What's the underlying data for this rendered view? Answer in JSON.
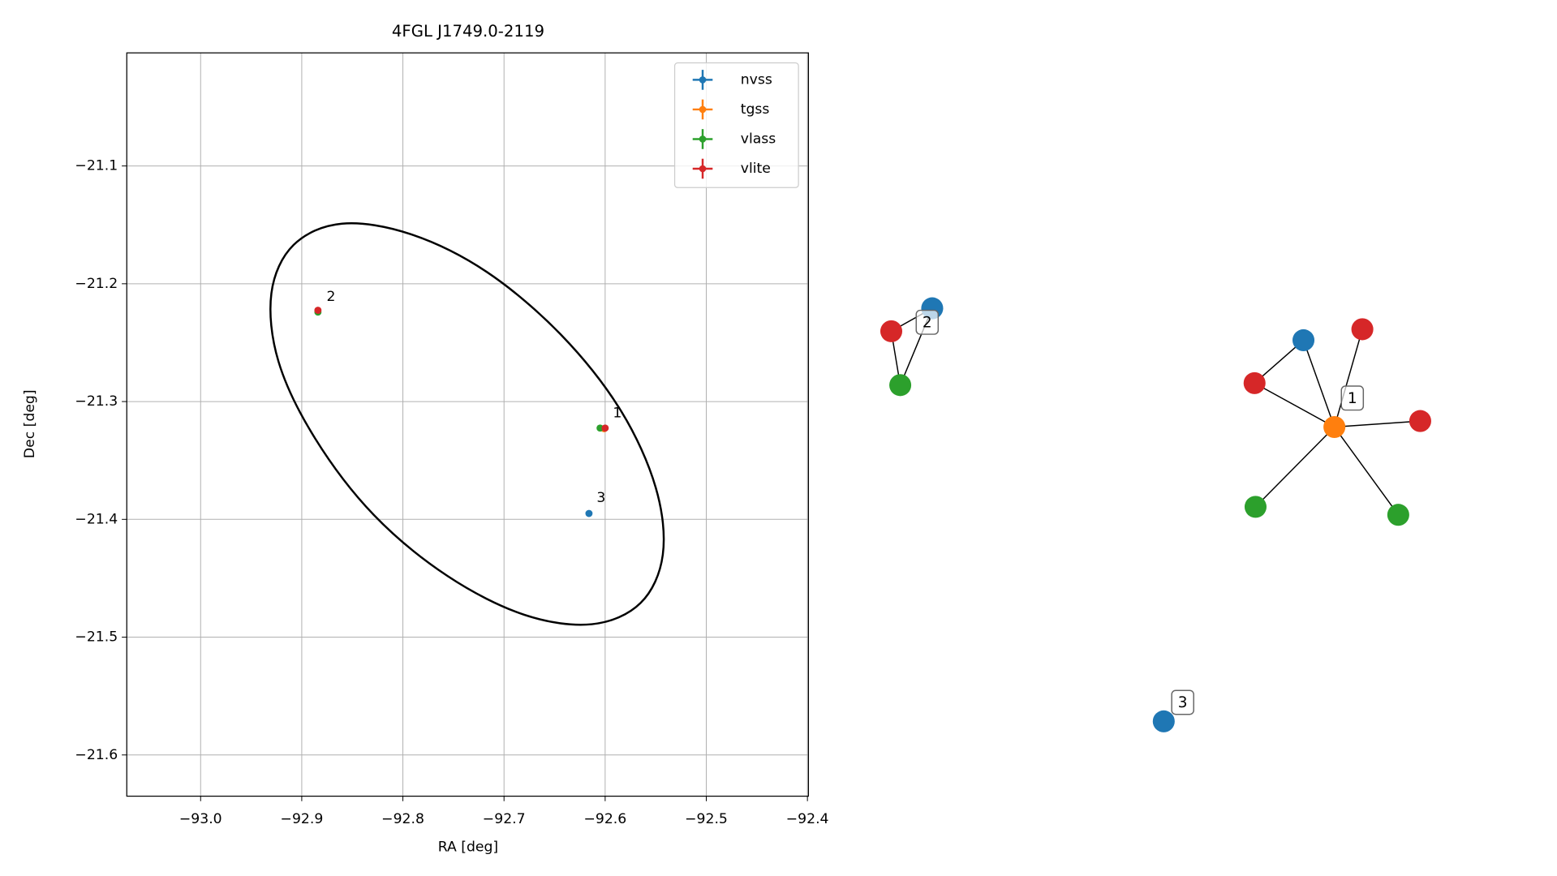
{
  "chart_data": {
    "type": "scatter",
    "title": "4FGL J1749.0-2119",
    "xlabel": "RA [deg]",
    "ylabel": "Dec [deg]",
    "xlim": [
      -93.073,
      -92.399
    ],
    "ylim": [
      -21.635,
      -21.004
    ],
    "xticks": [
      {
        "value": -93.0,
        "label": "−93.0"
      },
      {
        "value": -92.9,
        "label": "−92.9"
      },
      {
        "value": -92.8,
        "label": "−92.8"
      },
      {
        "value": -92.7,
        "label": "−92.7"
      },
      {
        "value": -92.6,
        "label": "−92.6"
      },
      {
        "value": -92.5,
        "label": "−92.5"
      },
      {
        "value": -92.4,
        "label": "−92.4"
      }
    ],
    "yticks": [
      {
        "value": -21.6,
        "label": "−21.6"
      },
      {
        "value": -21.5,
        "label": "−21.5"
      },
      {
        "value": -21.4,
        "label": "−21.4"
      },
      {
        "value": -21.3,
        "label": "−21.3"
      },
      {
        "value": -21.2,
        "label": "−21.2"
      },
      {
        "value": -21.1,
        "label": "−21.1"
      }
    ],
    "grid": true,
    "legend": "upper right",
    "series": [
      {
        "name": "nvss",
        "color": "#1f77b4",
        "x": [
          -92.616
        ],
        "y": [
          -21.395
        ]
      },
      {
        "name": "tgss",
        "color": "#ff7f0e",
        "x": [
          -92.601
        ],
        "y": [
          -21.323
        ]
      },
      {
        "name": "vlass",
        "color": "#2ca02c",
        "x": [
          -92.884,
          -92.605
        ],
        "y": [
          -21.224,
          -21.3225
        ]
      },
      {
        "name": "vlite",
        "color": "#d62728",
        "x": [
          -92.884,
          -92.6
        ],
        "y": [
          -21.2225,
          -21.3225
        ]
      }
    ],
    "annotations": [
      {
        "text": "2",
        "x": -92.871,
        "y": -21.211
      },
      {
        "text": "1",
        "x": -92.588,
        "y": -21.31
      },
      {
        "text": "3",
        "x": -92.604,
        "y": -21.382
      }
    ],
    "ellipse": {
      "ra": [
        -92.565,
        -92.613,
        -92.68,
        -92.756,
        -92.829,
        -92.887,
        -92.923,
        -92.93,
        -92.908,
        -92.86,
        -92.792,
        -92.717,
        -92.644,
        -92.585,
        -92.55,
        -92.543
      ],
      "dec": [
        -21.471,
        -21.489,
        -21.481,
        -21.448,
        -21.396,
        -21.331,
        -21.266,
        -21.208,
        -21.167,
        -21.149,
        -21.158,
        -21.19,
        -21.243,
        -21.307,
        -21.373,
        -21.43
      ]
    }
  },
  "network": {
    "nodes": [
      {
        "color": "#1f77b4"
      },
      {
        "color": "#d62728"
      },
      {
        "color": "#2ca02c"
      },
      {
        "color": "#ff7f0e"
      },
      {
        "color": "#1f77b4"
      },
      {
        "color": "#d62728"
      },
      {
        "color": "#d62728"
      },
      {
        "color": "#d62728"
      },
      {
        "color": "#2ca02c"
      },
      {
        "color": "#2ca02c"
      },
      {
        "color": "#1f77b4"
      }
    ],
    "edges": [
      [
        1,
        0
      ],
      [
        1,
        2
      ],
      [
        2,
        0
      ],
      [
        3,
        4
      ],
      [
        3,
        5
      ],
      [
        3,
        6
      ],
      [
        3,
        7
      ],
      [
        3,
        8
      ],
      [
        3,
        9
      ],
      [
        4,
        6
      ]
    ],
    "labels": [
      "2",
      "1",
      "3"
    ]
  }
}
